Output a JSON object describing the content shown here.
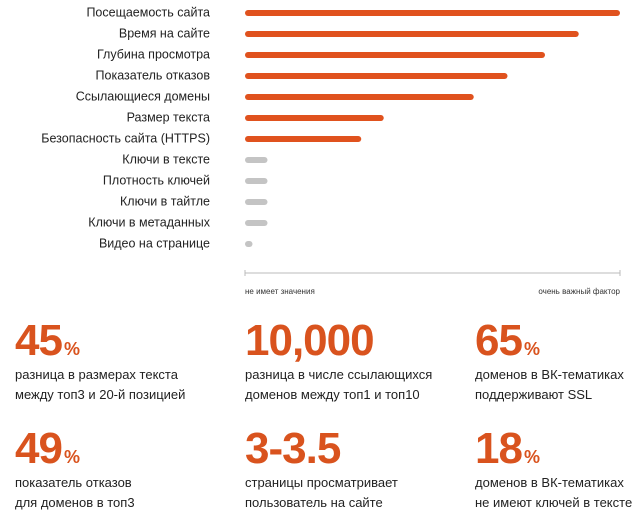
{
  "chart_data": {
    "type": "bar",
    "orientation": "horizontal",
    "categories": [
      "Посещаемость сайта",
      "Время на сайте",
      "Глубина просмотра",
      "Показатель отказов",
      "Ссылающиеся домены",
      "Размер текста",
      "Безопасность сайта (HTTPS)",
      "Ключи в тексте",
      "Плотность ключей",
      "Ключи в тайтле",
      "Ключи в метаданных",
      "Видео на странице"
    ],
    "values": [
      100,
      89,
      80,
      70,
      61,
      37,
      31,
      6,
      6,
      6,
      6,
      2
    ],
    "colors": [
      "#e0521e",
      "#e0521e",
      "#e0521e",
      "#e0521e",
      "#e0521e",
      "#e0521e",
      "#e0521e",
      "#c4c4c4",
      "#c4c4c4",
      "#c4c4c4",
      "#c4c4c4",
      "#c4c4c4"
    ],
    "xlim": [
      0,
      100
    ],
    "xticks": [
      {
        "value": 0,
        "label": "не имеет значения"
      },
      {
        "value": 100,
        "label": "очень важный фактор"
      }
    ]
  },
  "stats": [
    {
      "value": "45",
      "unit": "%",
      "text": [
        "разница в размерах текста",
        "между топ3 и 20-й позицией"
      ]
    },
    {
      "value": "10,000",
      "text": [
        "разница в числе ссылающихся",
        "доменов между топ1 и топ10"
      ]
    },
    {
      "value": "65",
      "unit": "%",
      "text": [
        "доменов в ВК-тематиках",
        "поддерживают SSL"
      ]
    },
    {
      "value": "49",
      "unit": "%",
      "text": [
        "показатель отказов",
        "для доменов в топ3"
      ]
    },
    {
      "value": "3-3.5",
      "text": [
        "страницы просматривает",
        "пользователь на сайте"
      ]
    },
    {
      "value": "18",
      "unit": "%",
      "text": [
        "доменов в ВК-тематиках",
        "не имеют ключей в тексте"
      ]
    }
  ]
}
